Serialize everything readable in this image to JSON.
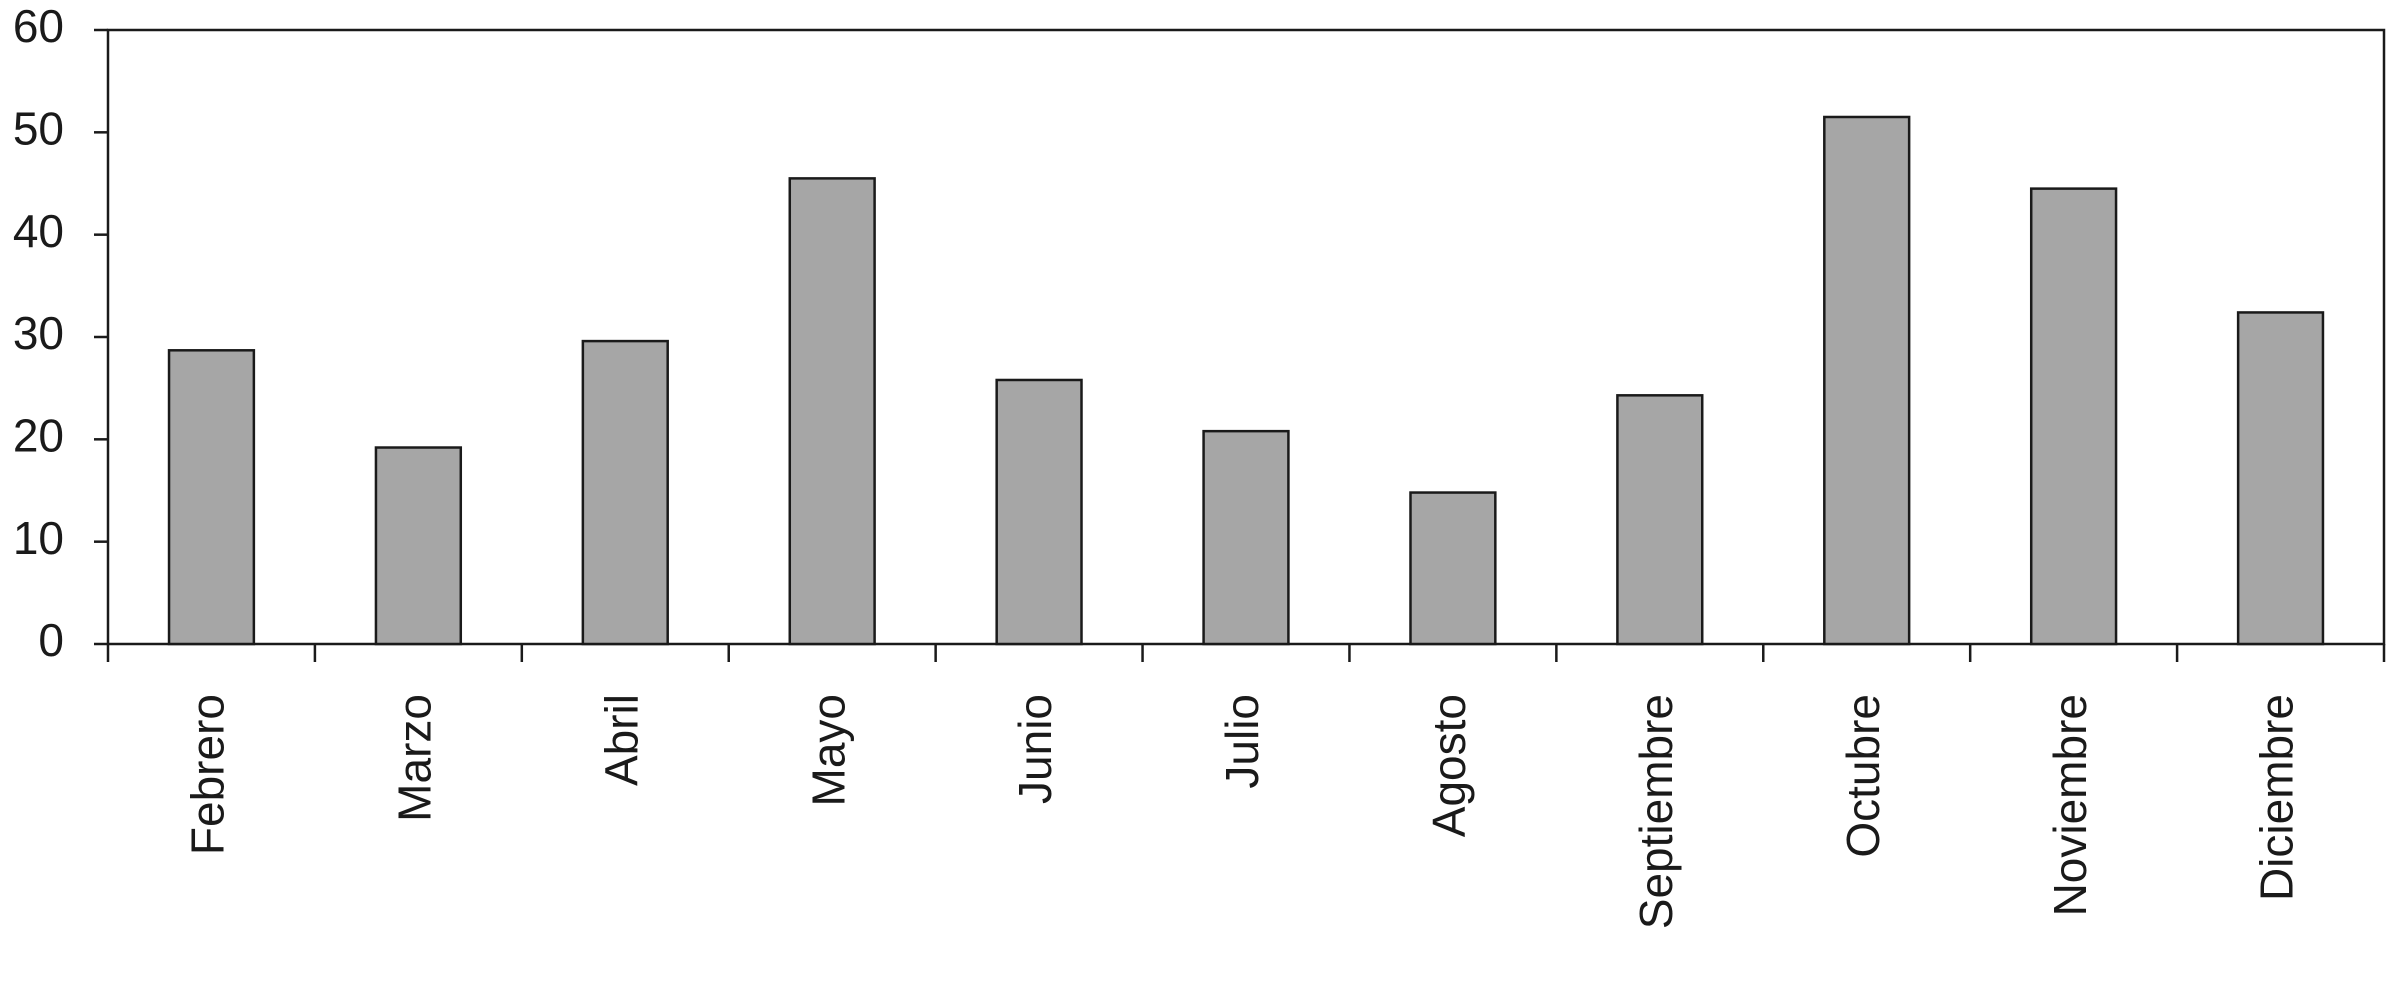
{
  "chart_data": {
    "type": "bar",
    "categories": [
      "Febrero",
      "Marzo",
      "Abril",
      "Mayo",
      "Junio",
      "Julio",
      "Agosto",
      "Septiembre",
      "Octubre",
      "Noviembre",
      "Diciembre"
    ],
    "values": [
      28.7,
      19.2,
      29.6,
      45.5,
      25.8,
      20.8,
      14.8,
      24.3,
      51.5,
      44.5,
      32.4
    ],
    "color": "#a6a6a6",
    "ylim": [
      0,
      60
    ],
    "yticks": [
      0,
      10,
      20,
      30,
      40,
      50,
      60
    ],
    "grid": false
  }
}
